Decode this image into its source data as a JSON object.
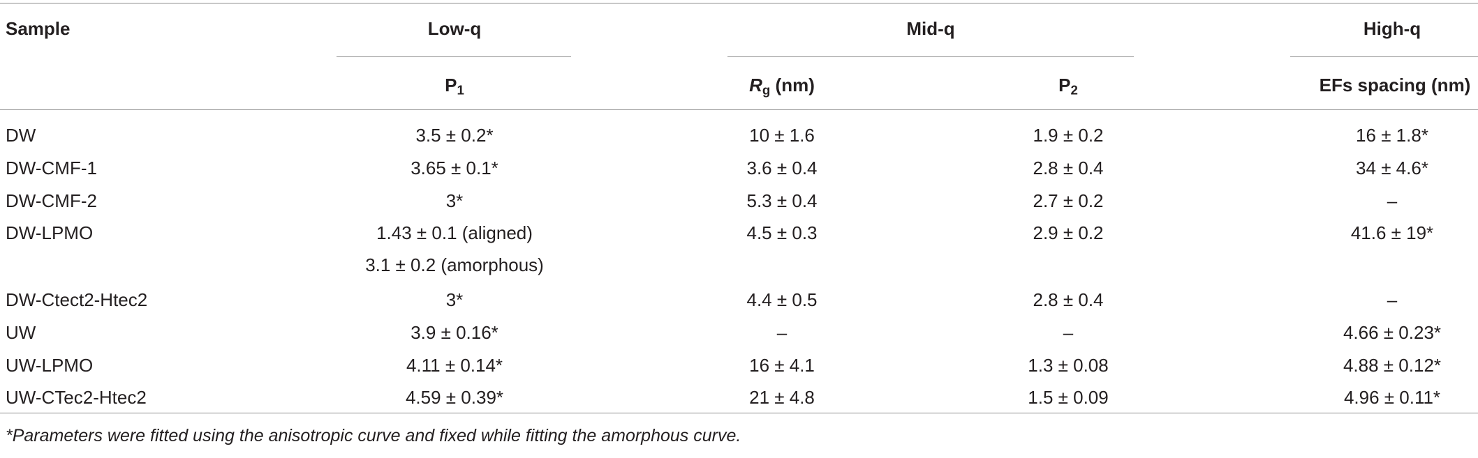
{
  "groups": [
    {
      "label": "Low-q"
    },
    {
      "label": "Mid-q"
    },
    {
      "label": "High-q"
    }
  ],
  "columns": {
    "sample": "Sample",
    "p1": {
      "main": "P",
      "sub": "1"
    },
    "rg": {
      "main": "R",
      "sub": "g",
      "unit": " (nm)"
    },
    "p2": {
      "main": "P",
      "sub": "2"
    },
    "efs": "EFs spacing (nm)"
  },
  "rows": [
    {
      "sample": "DW",
      "p1": "3.5 ± 0.2*",
      "rg": "10 ± 1.6",
      "p2": "1.9 ± 0.2",
      "efs": "16 ± 1.8*"
    },
    {
      "sample": "DW-CMF-1",
      "p1": "3.65 ± 0.1*",
      "rg": "3.6 ± 0.4",
      "p2": "2.8 ± 0.4",
      "efs": "34 ± 4.6*"
    },
    {
      "sample": "DW-CMF-2",
      "p1": "3*",
      "rg": "5.3 ± 0.4",
      "p2": "2.7 ± 0.2",
      "efs": "–"
    },
    {
      "sample": "DW-LPMO",
      "p1": "1.43 ± 0.1 (aligned)",
      "rg": "4.5 ± 0.3",
      "p2": "2.9 ± 0.2",
      "efs": "41.6 ± 19*"
    },
    {
      "sample": "",
      "p1": "3.1 ± 0.2 (amorphous)",
      "rg": "",
      "p2": "",
      "efs": ""
    },
    {
      "sample": "DW-Ctect2-Htec2",
      "p1": "3*",
      "rg": "4.4 ± 0.5",
      "p2": "2.8 ± 0.4",
      "efs": "–"
    },
    {
      "sample": "UW",
      "p1": "3.9 ± 0.16*",
      "rg": "–",
      "p2": "–",
      "efs": "4.66 ± 0.23*"
    },
    {
      "sample": "UW-LPMO",
      "p1": "4.11 ± 0.14*",
      "rg": "16 ± 4.1",
      "p2": "1.3 ± 0.08",
      "efs": "4.88 ± 0.12*"
    },
    {
      "sample": "UW-CTec2-Htec2",
      "p1": "4.59 ± 0.39*",
      "rg": "21 ± 4.8",
      "p2": "1.5 ± 0.09",
      "efs": "4.96 ± 0.11*"
    }
  ],
  "footnote": "*Parameters were fitted using the anisotropic curve and fixed while fitting the amorphous curve."
}
